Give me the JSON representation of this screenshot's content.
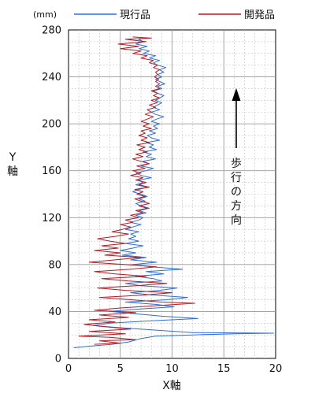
{
  "chart_data": {
    "type": "line",
    "unit_label": "(mm)",
    "xlabel": "X軸",
    "ylabel": "Y軸",
    "xlim": [
      0,
      20
    ],
    "ylim": [
      0,
      280
    ],
    "x_ticks": [
      "0",
      "5",
      "10",
      "15",
      "20"
    ],
    "y_ticks": [
      "0",
      "40",
      "80",
      "120",
      "160",
      "200",
      "240",
      "280"
    ],
    "grid": true,
    "legend_position": "top",
    "annotation": "歩行の方向",
    "series": [
      {
        "name": "現行品",
        "color": "#2f6fd6",
        "points": [
          [
            0.5,
            9
          ],
          [
            1.5,
            10
          ],
          [
            2.8,
            11
          ],
          [
            4.2,
            12
          ],
          [
            5.8,
            14
          ],
          [
            7.0,
            17
          ],
          [
            8.4,
            19
          ],
          [
            12.0,
            20
          ],
          [
            16.0,
            21
          ],
          [
            19.8,
            21.5
          ],
          [
            12.0,
            22
          ],
          [
            8.6,
            24
          ],
          [
            5.2,
            26
          ],
          [
            2.4,
            28
          ],
          [
            4.0,
            30
          ],
          [
            8.0,
            32
          ],
          [
            12.5,
            34
          ],
          [
            9.0,
            36
          ],
          [
            6.5,
            38
          ],
          [
            4.0,
            40
          ],
          [
            6.8,
            42
          ],
          [
            10.2,
            44
          ],
          [
            8.5,
            46
          ],
          [
            5.5,
            48
          ],
          [
            9.5,
            50
          ],
          [
            11.5,
            52
          ],
          [
            8.2,
            54
          ],
          [
            6.0,
            56
          ],
          [
            8.8,
            58
          ],
          [
            10.5,
            60
          ],
          [
            7.0,
            62
          ],
          [
            5.5,
            64
          ],
          [
            9.0,
            66
          ],
          [
            8.2,
            68
          ],
          [
            6.5,
            70
          ],
          [
            9.2,
            72
          ],
          [
            7.5,
            74
          ],
          [
            11.0,
            76
          ],
          [
            8.0,
            78
          ],
          [
            6.2,
            80
          ],
          [
            8.5,
            82
          ],
          [
            6.0,
            84
          ],
          [
            7.5,
            86
          ],
          [
            5.2,
            88
          ],
          [
            6.5,
            90
          ],
          [
            5.0,
            92
          ],
          [
            6.2,
            94
          ],
          [
            7.2,
            96
          ],
          [
            5.5,
            98
          ],
          [
            6.8,
            100
          ],
          [
            5.8,
            102
          ],
          [
            6.5,
            104
          ],
          [
            6.0,
            106
          ],
          [
            6.8,
            108
          ],
          [
            5.5,
            110
          ],
          [
            6.2,
            112
          ],
          [
            7.0,
            114
          ],
          [
            6.0,
            116
          ],
          [
            6.8,
            118
          ],
          [
            7.2,
            120
          ],
          [
            6.5,
            122
          ],
          [
            7.5,
            124
          ],
          [
            6.8,
            126
          ],
          [
            7.8,
            128
          ],
          [
            7.0,
            130
          ],
          [
            6.5,
            132
          ],
          [
            7.4,
            134
          ],
          [
            6.8,
            136
          ],
          [
            7.6,
            138
          ],
          [
            7.0,
            140
          ],
          [
            6.2,
            142
          ],
          [
            6.8,
            144
          ],
          [
            7.6,
            146
          ],
          [
            6.5,
            148
          ],
          [
            7.2,
            150
          ],
          [
            6.8,
            152
          ],
          [
            8.0,
            154
          ],
          [
            7.0,
            156
          ],
          [
            6.5,
            158
          ],
          [
            7.5,
            160
          ],
          [
            8.2,
            162
          ],
          [
            7.0,
            164
          ],
          [
            7.8,
            166
          ],
          [
            7.2,
            168
          ],
          [
            8.4,
            170
          ],
          [
            7.5,
            172
          ],
          [
            8.0,
            174
          ],
          [
            7.2,
            176
          ],
          [
            8.5,
            178
          ],
          [
            7.8,
            180
          ],
          [
            8.2,
            182
          ],
          [
            7.5,
            184
          ],
          [
            8.8,
            186
          ],
          [
            8.0,
            188
          ],
          [
            7.6,
            190
          ],
          [
            8.4,
            192
          ],
          [
            7.8,
            194
          ],
          [
            8.6,
            196
          ],
          [
            8.2,
            198
          ],
          [
            8.8,
            200
          ],
          [
            8.0,
            202
          ],
          [
            8.5,
            204
          ],
          [
            9.2,
            206
          ],
          [
            8.4,
            208
          ],
          [
            8.0,
            210
          ],
          [
            8.8,
            212
          ],
          [
            8.2,
            214
          ],
          [
            8.6,
            216
          ],
          [
            9.0,
            218
          ],
          [
            8.4,
            220
          ],
          [
            8.8,
            222
          ],
          [
            9.2,
            224
          ],
          [
            8.6,
            226
          ],
          [
            8.2,
            228
          ],
          [
            9.0,
            230
          ],
          [
            8.6,
            232
          ],
          [
            9.3,
            234
          ],
          [
            8.8,
            236
          ],
          [
            8.4,
            238
          ],
          [
            9.0,
            240
          ],
          [
            8.6,
            242
          ],
          [
            9.2,
            244
          ],
          [
            8.8,
            246
          ],
          [
            9.4,
            248
          ],
          [
            8.6,
            250
          ],
          [
            8.2,
            252
          ],
          [
            8.8,
            254
          ],
          [
            7.8,
            256
          ],
          [
            8.4,
            258
          ],
          [
            7.2,
            260
          ],
          [
            7.8,
            262
          ],
          [
            6.8,
            264
          ],
          [
            7.6,
            266
          ],
          [
            6.5,
            268
          ],
          [
            7.2,
            270
          ],
          [
            6.8,
            272
          ],
          [
            7.4,
            273
          ]
        ]
      },
      {
        "name": "開発品",
        "color": "#b01c24",
        "points": [
          [
            2.5,
            12
          ],
          [
            5.0,
            13
          ],
          [
            3.0,
            15
          ],
          [
            6.5,
            16
          ],
          [
            4.0,
            18
          ],
          [
            1.0,
            19
          ],
          [
            5.5,
            21
          ],
          [
            2.0,
            23
          ],
          [
            6.0,
            25
          ],
          [
            3.5,
            27
          ],
          [
            1.5,
            29
          ],
          [
            4.5,
            31
          ],
          [
            2.0,
            33
          ],
          [
            5.8,
            35
          ],
          [
            3.0,
            37
          ],
          [
            6.5,
            39
          ],
          [
            2.5,
            41
          ],
          [
            5.0,
            43
          ],
          [
            8.5,
            45
          ],
          [
            12.2,
            47
          ],
          [
            9.0,
            48
          ],
          [
            6.0,
            50
          ],
          [
            3.0,
            52
          ],
          [
            7.2,
            54
          ],
          [
            10.0,
            56
          ],
          [
            5.5,
            58
          ],
          [
            2.8,
            60
          ],
          [
            6.5,
            62
          ],
          [
            9.5,
            64
          ],
          [
            5.8,
            66
          ],
          [
            3.2,
            68
          ],
          [
            7.5,
            70
          ],
          [
            4.5,
            72
          ],
          [
            2.5,
            74
          ],
          [
            6.0,
            76
          ],
          [
            8.5,
            78
          ],
          [
            5.5,
            80
          ],
          [
            2.0,
            82
          ],
          [
            4.5,
            84
          ],
          [
            7.0,
            86
          ],
          [
            3.5,
            88
          ],
          [
            5.0,
            90
          ],
          [
            2.5,
            92
          ],
          [
            4.8,
            94
          ],
          [
            3.2,
            96
          ],
          [
            5.5,
            98
          ],
          [
            4.0,
            100
          ],
          [
            2.8,
            102
          ],
          [
            4.5,
            104
          ],
          [
            5.8,
            106
          ],
          [
            4.2,
            108
          ],
          [
            5.2,
            110
          ],
          [
            6.0,
            112
          ],
          [
            5.0,
            114
          ],
          [
            6.2,
            116
          ],
          [
            5.5,
            118
          ],
          [
            6.8,
            120
          ],
          [
            6.0,
            122
          ],
          [
            7.2,
            124
          ],
          [
            6.5,
            126
          ],
          [
            7.6,
            128
          ],
          [
            6.8,
            130
          ],
          [
            7.8,
            132
          ],
          [
            7.0,
            134
          ],
          [
            6.4,
            136
          ],
          [
            7.4,
            138
          ],
          [
            6.6,
            140
          ],
          [
            7.2,
            142
          ],
          [
            6.4,
            144
          ],
          [
            7.8,
            146
          ],
          [
            6.8,
            148
          ],
          [
            7.5,
            150
          ],
          [
            6.5,
            152
          ],
          [
            7.2,
            154
          ],
          [
            6.0,
            156
          ],
          [
            7.0,
            158
          ],
          [
            6.2,
            160
          ],
          [
            7.4,
            162
          ],
          [
            6.6,
            164
          ],
          [
            7.8,
            166
          ],
          [
            7.0,
            168
          ],
          [
            6.2,
            170
          ],
          [
            7.2,
            172
          ],
          [
            6.5,
            174
          ],
          [
            7.6,
            176
          ],
          [
            6.8,
            178
          ],
          [
            7.4,
            180
          ],
          [
            6.6,
            182
          ],
          [
            7.8,
            184
          ],
          [
            7.0,
            186
          ],
          [
            7.6,
            188
          ],
          [
            6.8,
            190
          ],
          [
            7.4,
            192
          ],
          [
            7.0,
            194
          ],
          [
            8.0,
            196
          ],
          [
            7.2,
            198
          ],
          [
            7.8,
            200
          ],
          [
            7.0,
            202
          ],
          [
            7.6,
            204
          ],
          [
            8.2,
            206
          ],
          [
            7.4,
            208
          ],
          [
            8.0,
            210
          ],
          [
            7.6,
            212
          ],
          [
            8.4,
            214
          ],
          [
            7.8,
            216
          ],
          [
            8.6,
            218
          ],
          [
            8.0,
            220
          ],
          [
            8.8,
            222
          ],
          [
            8.2,
            224
          ],
          [
            8.6,
            226
          ],
          [
            8.0,
            228
          ],
          [
            8.8,
            230
          ],
          [
            8.4,
            232
          ],
          [
            8.8,
            234
          ],
          [
            8.4,
            236
          ],
          [
            8.7,
            238
          ],
          [
            8.3,
            240
          ],
          [
            8.6,
            242
          ],
          [
            8.4,
            244
          ],
          [
            8.8,
            246
          ],
          [
            8.2,
            248
          ],
          [
            8.6,
            250
          ],
          [
            7.8,
            252
          ],
          [
            8.2,
            254
          ],
          [
            7.0,
            256
          ],
          [
            7.6,
            258
          ],
          [
            6.2,
            260
          ],
          [
            7.0,
            262
          ],
          [
            5.0,
            264
          ],
          [
            6.8,
            266
          ],
          [
            4.8,
            268
          ],
          [
            7.5,
            270
          ],
          [
            5.5,
            272
          ],
          [
            8.0,
            273
          ],
          [
            6.2,
            274
          ]
        ]
      }
    ]
  }
}
